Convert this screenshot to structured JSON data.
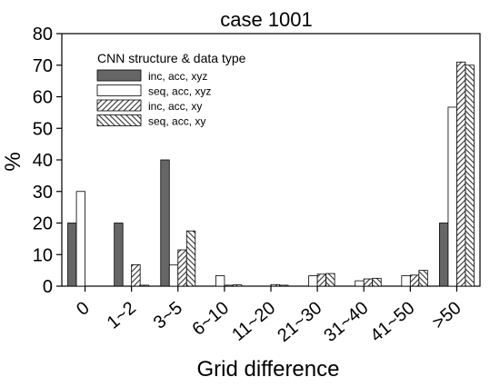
{
  "chart_data": {
    "type": "bar",
    "title": "case 1001",
    "xlabel": "Grid difference",
    "ylabel": "%",
    "ylim": [
      0,
      80
    ],
    "yticks": [
      0,
      10,
      20,
      30,
      40,
      50,
      60,
      70,
      80
    ],
    "categories": [
      "0",
      "1~2",
      "3~5",
      "6~10",
      "11~20",
      "21~30",
      "31~40",
      "41~50",
      ">50"
    ],
    "legend_title": "CNN structure & data type",
    "legend_position": "top-left",
    "grid": false,
    "series": [
      {
        "name": "inc, acc, xyz",
        "fill": "solid",
        "color": "#666666",
        "values": [
          20,
          20,
          40,
          0,
          0,
          0,
          0,
          0,
          20
        ]
      },
      {
        "name": "seq, acc, xyz",
        "fill": "white",
        "color": "#ffffff",
        "values": [
          30,
          0,
          6.7,
          3.3,
          0,
          3.3,
          1.7,
          3.3,
          56.7
        ]
      },
      {
        "name": "inc, acc, xy",
        "fill": "hatch-forward",
        "color": "#ffffff",
        "values": [
          0,
          6.8,
          11.5,
          0.3,
          0.5,
          3.8,
          2.3,
          3.5,
          71
        ]
      },
      {
        "name": "seq, acc, xy",
        "fill": "hatch-backward",
        "color": "#ffffff",
        "values": [
          0,
          0.3,
          17.5,
          0.4,
          0.3,
          4.0,
          2.5,
          5.0,
          70
        ]
      }
    ]
  }
}
